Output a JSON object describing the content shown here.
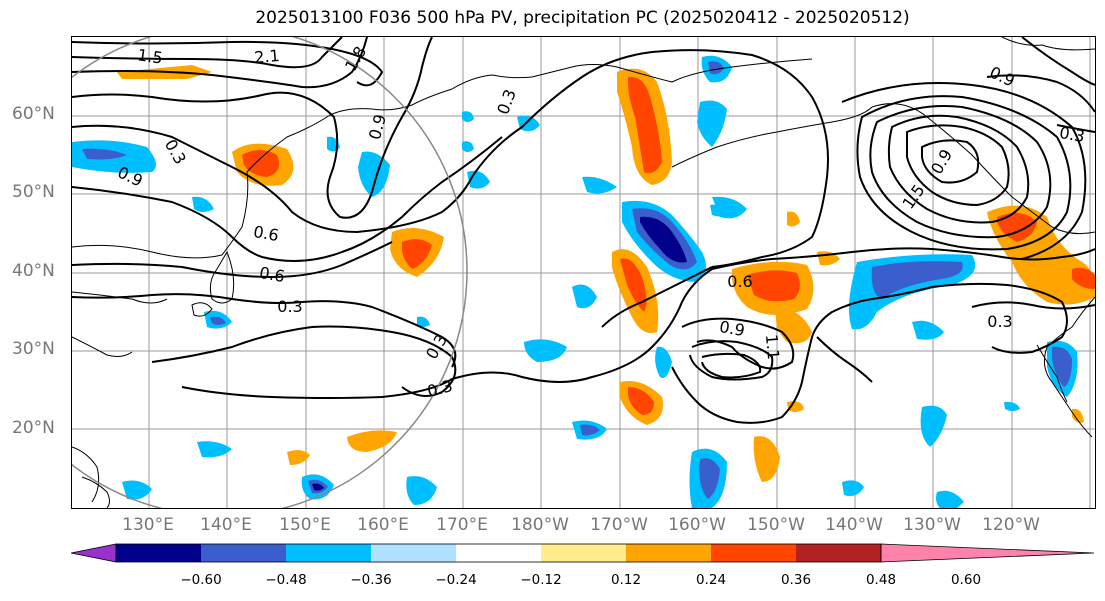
{
  "title": "2025013100 F036 500 hPa PV, precipitation PC (2025020412 - 2025020512)",
  "lat_labels": [
    "60°N",
    "50°N",
    "40°N",
    "30°N",
    "20°N"
  ],
  "lon_labels": [
    "130°E",
    "140°E",
    "150°E",
    "160°E",
    "170°E",
    "180°W",
    "170°W",
    "160°W",
    "150°W",
    "140°W",
    "130°W",
    "120°W"
  ],
  "contour_labels": [
    "1.5",
    "2.1",
    "1.8",
    "0.9",
    "0.3",
    "0.3",
    "0.9",
    "0.6",
    "0.6",
    "0.3",
    "0.3",
    "0.3",
    "0.6",
    "0.9",
    "1.1",
    "1.5",
    "0.9",
    "0.3",
    "0.3",
    "0.9"
  ],
  "colorbar": {
    "ticks": [
      "−0.60",
      "−0.48",
      "−0.36",
      "−0.24",
      "−0.12",
      "0.12",
      "0.24",
      "0.36",
      "0.48",
      "0.60"
    ],
    "colors": [
      "#9932cc",
      "#00008b",
      "#3a5fcd",
      "#00bfff",
      "#b0e2ff",
      "#ffffff",
      "#ffec8b",
      "#ffa500",
      "#ff4500",
      "#b22222",
      "#ff82ab"
    ]
  }
}
